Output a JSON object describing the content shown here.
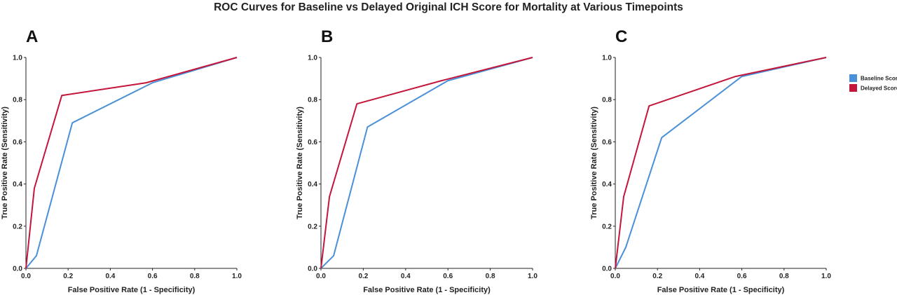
{
  "title": "ROC Curves for Baseline vs Delayed Original ICH Score for Mortality at Various Timepoints",
  "legend": [
    {
      "label": "Baseline Score",
      "color": "#4a90d9"
    },
    {
      "label": "Delayed Score",
      "color": "#c4163a"
    }
  ],
  "chart_data": [
    {
      "type": "line",
      "panel_label": "A",
      "xlabel": "False Positive Rate (1 - Specificity)",
      "ylabel": "True Positive Rate (Sensitivity)",
      "xlim": [
        0,
        1
      ],
      "ylim": [
        0,
        1
      ],
      "xticks": [
        "0.0",
        "0.2",
        "0.4",
        "0.6",
        "0.8",
        "1.0"
      ],
      "yticks": [
        "0.0",
        "0.2",
        "0.4",
        "0.6",
        "0.8",
        "1.0"
      ],
      "grid": false,
      "series": [
        {
          "name": "Baseline Score",
          "color": "#4a90d9",
          "x": [
            0.0,
            0.05,
            0.22,
            0.6,
            1.0
          ],
          "y": [
            0.0,
            0.06,
            0.69,
            0.88,
            1.0
          ]
        },
        {
          "name": "Delayed Score",
          "color": "#c4163a",
          "x": [
            0.0,
            0.04,
            0.17,
            0.57,
            1.0
          ],
          "y": [
            0.0,
            0.38,
            0.82,
            0.88,
            1.0
          ]
        }
      ]
    },
    {
      "type": "line",
      "panel_label": "B",
      "xlabel": "False Positive Rate (1 - Specificity)",
      "ylabel": "True Positive Rate (Sensitivity)",
      "xlim": [
        0,
        1
      ],
      "ylim": [
        0,
        1
      ],
      "xticks": [
        "0.0",
        "0.2",
        "0.4",
        "0.6",
        "0.8",
        "1.0"
      ],
      "yticks": [
        "0.0",
        "0.2",
        "0.4",
        "0.6",
        "0.8",
        "1.0"
      ],
      "grid": false,
      "series": [
        {
          "name": "Baseline Score",
          "color": "#4a90d9",
          "x": [
            0.0,
            0.06,
            0.22,
            0.6,
            1.0
          ],
          "y": [
            0.0,
            0.06,
            0.67,
            0.89,
            1.0
          ]
        },
        {
          "name": "Delayed Score",
          "color": "#c4163a",
          "x": [
            0.0,
            0.04,
            0.17,
            0.57,
            1.0
          ],
          "y": [
            0.0,
            0.34,
            0.78,
            0.89,
            1.0
          ]
        }
      ]
    },
    {
      "type": "line",
      "panel_label": "C",
      "xlabel": "False Positive Rate (1 - Specificity)",
      "ylabel": "True Positive Rate (Sensitivity)",
      "xlim": [
        0,
        1
      ],
      "ylim": [
        0,
        1
      ],
      "xticks": [
        "0.0",
        "0.2",
        "0.4",
        "0.6",
        "0.8",
        "1.0"
      ],
      "yticks": [
        "0.0",
        "0.2",
        "0.4",
        "0.6",
        "0.8",
        "1.0"
      ],
      "grid": false,
      "series": [
        {
          "name": "Baseline Score",
          "color": "#4a90d9",
          "x": [
            0.0,
            0.05,
            0.22,
            0.6,
            1.0
          ],
          "y": [
            0.0,
            0.1,
            0.62,
            0.91,
            1.0
          ]
        },
        {
          "name": "Delayed Score",
          "color": "#c4163a",
          "x": [
            0.0,
            0.04,
            0.16,
            0.57,
            1.0
          ],
          "y": [
            0.0,
            0.34,
            0.77,
            0.91,
            1.0
          ]
        }
      ]
    }
  ]
}
